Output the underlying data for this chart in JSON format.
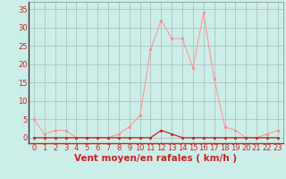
{
  "x": [
    0,
    1,
    2,
    3,
    4,
    5,
    6,
    7,
    8,
    9,
    10,
    11,
    12,
    13,
    14,
    15,
    16,
    17,
    18,
    19,
    20,
    21,
    22,
    23
  ],
  "y_rafales": [
    5,
    1,
    2,
    2,
    0,
    0,
    0,
    0,
    1,
    3,
    6,
    24,
    32,
    27,
    27,
    19,
    34,
    16,
    3,
    2,
    0,
    0,
    1,
    2
  ],
  "y_moyen": [
    0,
    0,
    0,
    0,
    0,
    0,
    0,
    0,
    0,
    0,
    0,
    0,
    2,
    1,
    0,
    0,
    0,
    0,
    0,
    0,
    0,
    0,
    0,
    0
  ],
  "bg_color": "#cceee8",
  "grid_color": "#aaaaaa",
  "line_color_rafales": "#ff9999",
  "line_color_moyen": "#cc2222",
  "marker_color_rafales": "#ff8888",
  "marker_color_moyen": "#cc2222",
  "xlabel": "Vent moyen/en rafales ( km/h )",
  "xlabel_color": "#cc2222",
  "xlabel_fontsize": 7.5,
  "ylabel_ticks": [
    0,
    5,
    10,
    15,
    20,
    25,
    30,
    35
  ],
  "ylim": [
    -1.5,
    37
  ],
  "xlim": [
    -0.5,
    23.5
  ],
  "tick_fontsize": 6,
  "tick_color": "#cc2222"
}
